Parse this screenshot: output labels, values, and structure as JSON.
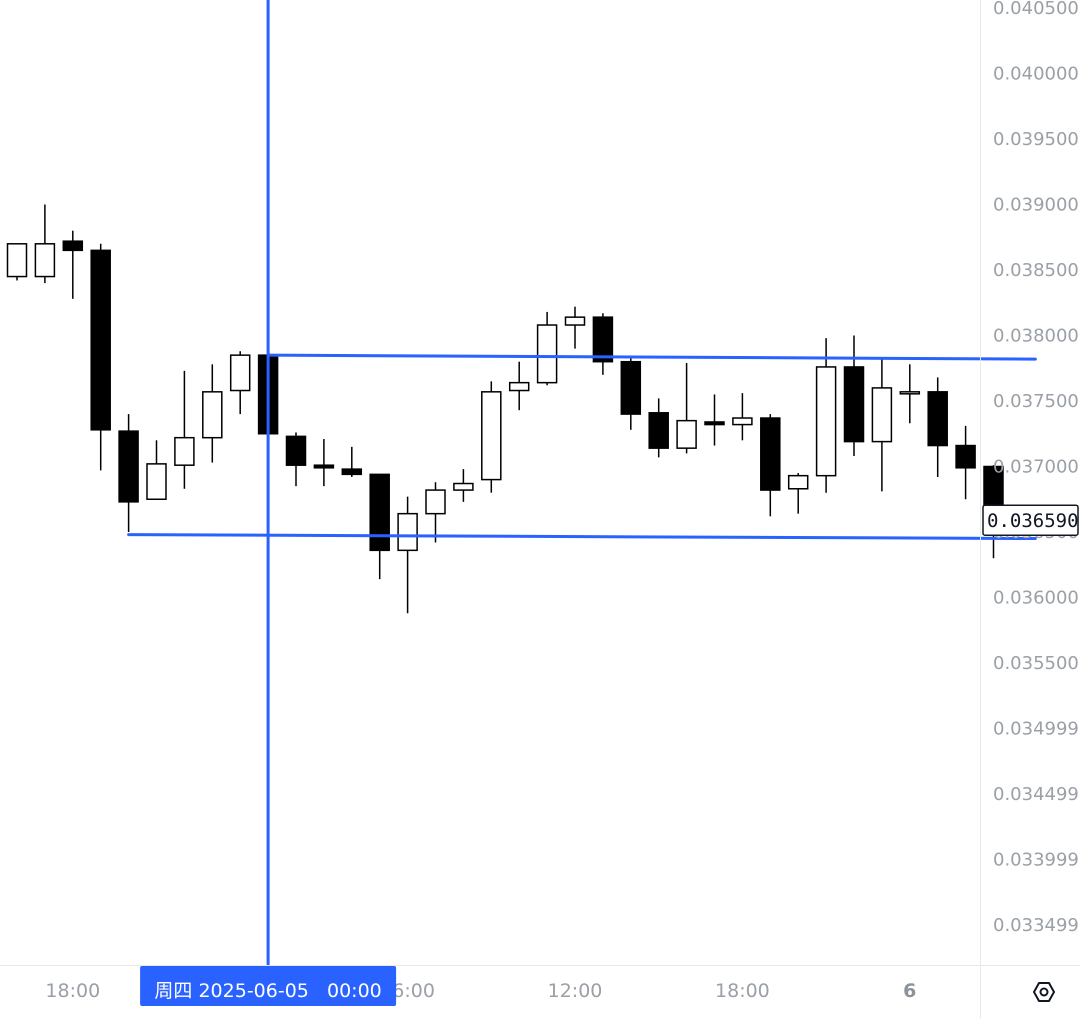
{
  "chart_data": {
    "type": "candlestick",
    "y_axis": {
      "min": 0.0331,
      "max": 0.0405,
      "tick_values": [
        0.0405,
        0.04,
        0.0395,
        0.039,
        0.0385,
        0.038,
        0.0375,
        0.037,
        0.0365,
        0.036,
        0.0355,
        0.035,
        0.0345,
        0.034,
        0.0335
      ],
      "tick_labels": [
        "0.040500",
        "0.040000",
        "0.039500",
        "0.039000",
        "0.038500",
        "0.038000",
        "0.037500",
        "0.037000",
        "0.036500",
        "0.036000",
        "0.035500",
        "0.034999",
        "0.034499",
        "0.033999",
        "0.033499"
      ]
    },
    "x_axis": {
      "ticks": [
        {
          "index": 2,
          "label": "18:00",
          "bold": false
        },
        {
          "index": 14,
          "label": "06:00",
          "bold": false
        },
        {
          "index": 20,
          "label": "12:00",
          "bold": false
        },
        {
          "index": 26,
          "label": "18:00",
          "bold": false
        },
        {
          "index": 32,
          "label": "6",
          "bold": true
        }
      ]
    },
    "candles": [
      {
        "o": 0.03845,
        "h": 0.0387,
        "l": 0.03842,
        "c": 0.0387
      },
      {
        "o": 0.03845,
        "h": 0.039,
        "l": 0.0384,
        "c": 0.0387
      },
      {
        "o": 0.03872,
        "h": 0.0388,
        "l": 0.03828,
        "c": 0.03865
      },
      {
        "o": 0.03865,
        "h": 0.0387,
        "l": 0.03697,
        "c": 0.03728
      },
      {
        "o": 0.03727,
        "h": 0.0374,
        "l": 0.0365,
        "c": 0.03673
      },
      {
        "o": 0.03675,
        "h": 0.0372,
        "l": 0.03675,
        "c": 0.03702
      },
      {
        "o": 0.03701,
        "h": 0.03773,
        "l": 0.03683,
        "c": 0.03722
      },
      {
        "o": 0.03722,
        "h": 0.03778,
        "l": 0.03703,
        "c": 0.03757
      },
      {
        "o": 0.03758,
        "h": 0.03788,
        "l": 0.0374,
        "c": 0.03785
      },
      {
        "o": 0.03785,
        "h": 0.03785,
        "l": 0.03725,
        "c": 0.03725
      },
      {
        "o": 0.03723,
        "h": 0.03726,
        "l": 0.03685,
        "c": 0.03701
      },
      {
        "o": 0.03701,
        "h": 0.03721,
        "l": 0.03685,
        "c": 0.03699
      },
      {
        "o": 0.03698,
        "h": 0.03715,
        "l": 0.03692,
        "c": 0.03694
      },
      {
        "o": 0.03694,
        "h": 0.03694,
        "l": 0.03614,
        "c": 0.03636
      },
      {
        "o": 0.03636,
        "h": 0.03677,
        "l": 0.03588,
        "c": 0.03664
      },
      {
        "o": 0.03664,
        "h": 0.03688,
        "l": 0.03642,
        "c": 0.03682
      },
      {
        "o": 0.03682,
        "h": 0.03698,
        "l": 0.03673,
        "c": 0.03687
      },
      {
        "o": 0.0369,
        "h": 0.03765,
        "l": 0.0368,
        "c": 0.03757
      },
      {
        "o": 0.03758,
        "h": 0.0378,
        "l": 0.03743,
        "c": 0.03764
      },
      {
        "o": 0.03764,
        "h": 0.03818,
        "l": 0.03762,
        "c": 0.03808
      },
      {
        "o": 0.03808,
        "h": 0.03822,
        "l": 0.0379,
        "c": 0.03814
      },
      {
        "o": 0.03814,
        "h": 0.03817,
        "l": 0.0377,
        "c": 0.0378
      },
      {
        "o": 0.0378,
        "h": 0.03783,
        "l": 0.03728,
        "c": 0.0374
      },
      {
        "o": 0.03741,
        "h": 0.03752,
        "l": 0.03707,
        "c": 0.03714
      },
      {
        "o": 0.03714,
        "h": 0.03779,
        "l": 0.0371,
        "c": 0.03735
      },
      {
        "o": 0.03734,
        "h": 0.03755,
        "l": 0.03716,
        "c": 0.03732
      },
      {
        "o": 0.03732,
        "h": 0.03756,
        "l": 0.0372,
        "c": 0.03737
      },
      {
        "o": 0.03737,
        "h": 0.0374,
        "l": 0.03662,
        "c": 0.03682
      },
      {
        "o": 0.03683,
        "h": 0.03695,
        "l": 0.03664,
        "c": 0.03693
      },
      {
        "o": 0.03693,
        "h": 0.03798,
        "l": 0.0368,
        "c": 0.03776
      },
      {
        "o": 0.03776,
        "h": 0.038,
        "l": 0.03708,
        "c": 0.03719
      },
      {
        "o": 0.03719,
        "h": 0.03782,
        "l": 0.03681,
        "c": 0.0376
      },
      {
        "o": 0.03757,
        "h": 0.03778,
        "l": 0.03733,
        "c": 0.03757
      },
      {
        "o": 0.03757,
        "h": 0.03768,
        "l": 0.03692,
        "c": 0.03716
      },
      {
        "o": 0.03716,
        "h": 0.03731,
        "l": 0.03675,
        "c": 0.03699
      },
      {
        "o": 0.037,
        "h": 0.03701,
        "l": 0.0363,
        "c": 0.03659
      }
    ],
    "trend_lines": [
      {
        "from": {
          "index": 9,
          "price": 0.03785
        },
        "to": {
          "index": 36.5,
          "price": 0.03782
        }
      },
      {
        "from": {
          "index": 4,
          "price": 0.03648
        },
        "to": {
          "index": 36.5,
          "price": 0.03645
        }
      }
    ],
    "crosshair": {
      "index": 9,
      "label": "周四 2025-06-05   00:00"
    },
    "last_price": {
      "value": 0.03659,
      "label": "0.036590"
    }
  },
  "toolbar": {
    "settings_icon": "hexagon-settings-icon"
  }
}
